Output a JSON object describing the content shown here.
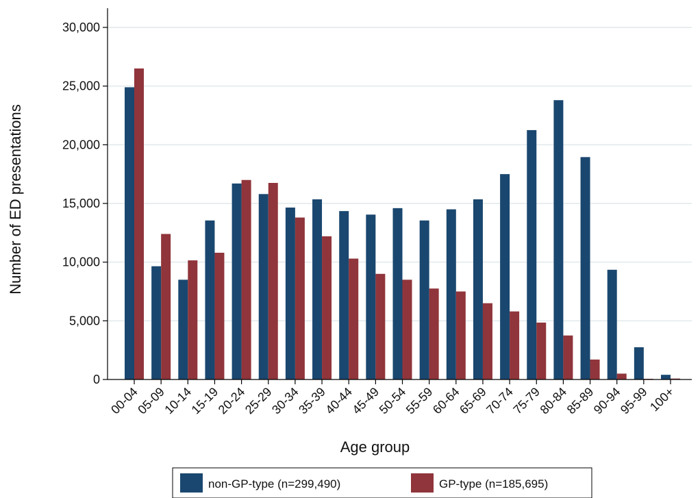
{
  "chart_data": {
    "type": "bar",
    "xlabel": "Age group",
    "ylabel": "Number of ED presentations",
    "ylim": [
      0,
      30000
    ],
    "yticks": [
      0,
      5000,
      10000,
      15000,
      20000,
      25000,
      30000
    ],
    "ytick_labels": [
      "0",
      "5,000",
      "10,000",
      "15,000",
      "20,000",
      "25,000",
      "30,000"
    ],
    "grid": "horizontal",
    "legend_position": "bottom",
    "categories": [
      "00-04",
      "05-09",
      "10-14",
      "15-19",
      "20-24",
      "25-29",
      "30-34",
      "35-39",
      "40-44",
      "45-49",
      "50-54",
      "55-59",
      "60-64",
      "65-69",
      "70-74",
      "75-79",
      "80-84",
      "85-89",
      "90-94",
      "95-99",
      "100+"
    ],
    "series": [
      {
        "name": "non-GP-type (n=299,490)",
        "color": "#1a476f",
        "values": [
          24900,
          9650,
          8500,
          13550,
          16700,
          15800,
          14650,
          15350,
          14350,
          14050,
          14600,
          13550,
          14500,
          15350,
          17500,
          21250,
          23800,
          18950,
          9350,
          2750,
          400
        ]
      },
      {
        "name": "GP-type (n=185,695)",
        "color": "#90353b",
        "values": [
          26500,
          12400,
          10150,
          10800,
          17000,
          16750,
          13800,
          12200,
          10300,
          9000,
          8500,
          7750,
          7500,
          6500,
          5800,
          4850,
          3750,
          1700,
          500,
          60,
          80
        ]
      }
    ]
  }
}
